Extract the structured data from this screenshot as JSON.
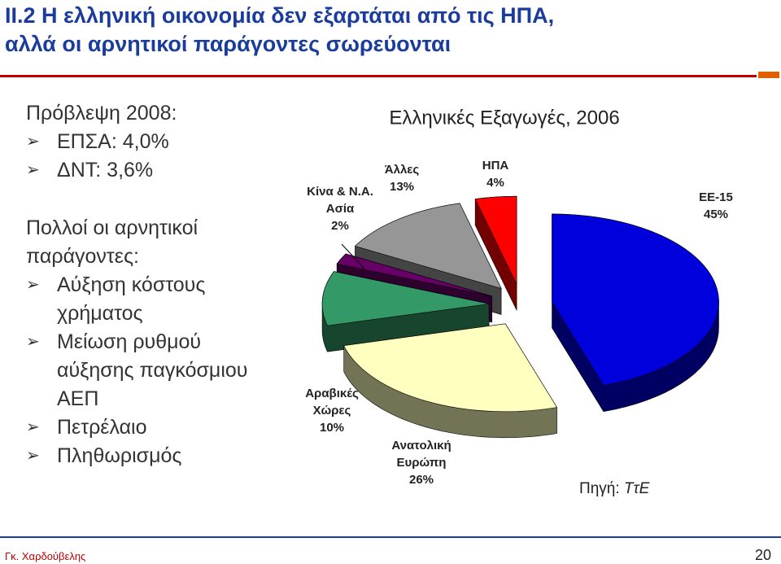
{
  "header": {
    "title": "II.2 Η ελληνική οικονομία δεν εξαρτάται από τις ΗΠΑ,\nαλλά οι αρνητικοί παράγοντες σωρεύονται"
  },
  "body": {
    "forecast_heading": "Πρόβλεψη 2008:",
    "forecast_items": [
      "ΕΠΣΑ: 4,0%",
      "ΔΝΤ:   3,6%"
    ],
    "factors_heading": "Πολλοί οι αρνητικοί παράγοντες:",
    "factors_items": [
      "Αύξηση κόστους χρήματος",
      "Μείωση ρυθμού αύξησης παγκόσμιου ΑΕΠ",
      "Πετρέλαιο",
      "Πληθωρισμός"
    ]
  },
  "chart_data": {
    "type": "pie",
    "title": "Ελληνικές Εξαγωγές, 2006",
    "categories": [
      "ΕΕ-15",
      "Ανατολική\nΕυρώπη",
      "Αραβικές\nΧώρες",
      "Κίνα & Ν.Α.\nΑσία",
      "Άλλες",
      "ΗΠΑ"
    ],
    "values": [
      45,
      26,
      10,
      2,
      13,
      4
    ],
    "value_labels": [
      "45%",
      "26%",
      "10%",
      "2%",
      "13%",
      "4%"
    ],
    "colors": [
      "#0000dd",
      "#ffffc0",
      "#339966",
      "#660066",
      "#969696",
      "#ff0000"
    ]
  },
  "source": {
    "label": "Πηγή:",
    "name": "ΤτΕ"
  },
  "footer": {
    "author": "Γκ. Χαρδούβελης",
    "page": "20"
  }
}
